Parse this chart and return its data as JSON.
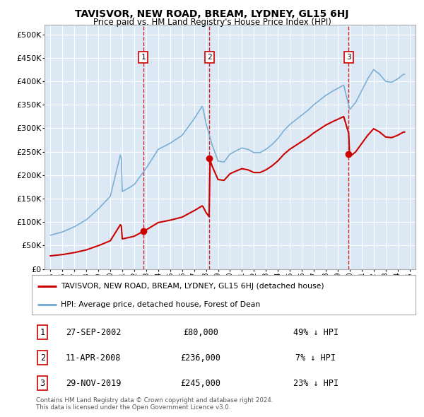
{
  "title": "TAVISVOR, NEW ROAD, BREAM, LYDNEY, GL15 6HJ",
  "subtitle": "Price paid vs. HM Land Registry's House Price Index (HPI)",
  "legend_line1": "TAVISVOR, NEW ROAD, BREAM, LYDNEY, GL15 6HJ (detached house)",
  "legend_line2": "HPI: Average price, detached house, Forest of Dean",
  "footer1": "Contains HM Land Registry data © Crown copyright and database right 2024.",
  "footer2": "This data is licensed under the Open Government Licence v3.0.",
  "transactions": [
    {
      "num": 1,
      "date": "27-SEP-2002",
      "price": 80000,
      "pct": "49%",
      "dir": "↓",
      "x_year": 2002.75
    },
    {
      "num": 2,
      "date": "11-APR-2008",
      "price": 236000,
      "pct": "7%",
      "dir": "↓",
      "x_year": 2008.28
    },
    {
      "num": 3,
      "date": "29-NOV-2019",
      "price": 245000,
      "pct": "23%",
      "dir": "↓",
      "x_year": 2019.92
    }
  ],
  "ylim": [
    0,
    520000
  ],
  "yticks": [
    0,
    50000,
    100000,
    150000,
    200000,
    250000,
    300000,
    350000,
    400000,
    450000,
    500000
  ],
  "xlim": [
    1994.5,
    2025.5
  ],
  "xticks": [
    1995,
    1996,
    1997,
    1998,
    1999,
    2000,
    2001,
    2002,
    2003,
    2004,
    2005,
    2006,
    2007,
    2008,
    2009,
    2010,
    2011,
    2012,
    2013,
    2014,
    2015,
    2016,
    2017,
    2018,
    2019,
    2020,
    2021,
    2022,
    2023,
    2024,
    2025
  ],
  "bg_color": "#dce9f5",
  "red_color": "#cc0000",
  "blue_color": "#7bafd4",
  "vline_color": "#cc0000"
}
